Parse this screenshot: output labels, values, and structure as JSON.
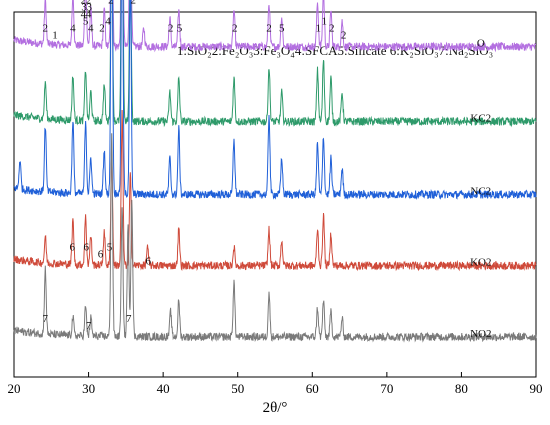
{
  "chart_data": {
    "type": "line",
    "title": "",
    "xlabel": "2θ/°",
    "ylabel": "",
    "xlim": [
      20,
      90
    ],
    "x_ticks": [
      20,
      30,
      40,
      50,
      60,
      70,
      80,
      90
    ],
    "x_tick_labels": [
      "20",
      "30",
      "40",
      "50",
      "60",
      "70",
      "80",
      "90"
    ],
    "y_ticks_shown": false,
    "grid": false,
    "legend": {
      "position": "top",
      "text": "1:SiO₂2:Fe₂O₃3:Fe₃O₄4:SFCA5:Silicate 6:K₂SiO₃7:Na₂SiO₃"
    },
    "series": [
      {
        "name": "O",
        "color": "#b36fe0",
        "baseline": 0.905,
        "peaks": [
          [
            24.2,
            0.12
          ],
          [
            27.9,
            0.14
          ],
          [
            29.6,
            0.18
          ],
          [
            30.3,
            0.1
          ],
          [
            32.1,
            0.1
          ],
          [
            33.1,
            0.45
          ],
          [
            34.5,
            0.62
          ],
          [
            35.6,
            0.45
          ],
          [
            37.4,
            0.05
          ],
          [
            40.9,
            0.08
          ],
          [
            42.1,
            0.1
          ],
          [
            49.5,
            0.1
          ],
          [
            54.2,
            0.12
          ],
          [
            55.9,
            0.08
          ],
          [
            60.7,
            0.12
          ],
          [
            61.5,
            0.15
          ],
          [
            62.5,
            0.1
          ],
          [
            64.0,
            0.07
          ]
        ]
      },
      {
        "name": "KC2",
        "color": "#2e9a6a",
        "baseline": 0.7,
        "peaks": [
          [
            24.2,
            0.1
          ],
          [
            27.9,
            0.12
          ],
          [
            29.6,
            0.14
          ],
          [
            30.3,
            0.08
          ],
          [
            32.1,
            0.1
          ],
          [
            33.1,
            0.55
          ],
          [
            34.5,
            0.75
          ],
          [
            35.6,
            0.45
          ],
          [
            40.9,
            0.08
          ],
          [
            42.1,
            0.12
          ],
          [
            49.5,
            0.12
          ],
          [
            54.2,
            0.15
          ],
          [
            55.9,
            0.08
          ],
          [
            60.7,
            0.14
          ],
          [
            61.5,
            0.17
          ],
          [
            62.5,
            0.12
          ],
          [
            64.0,
            0.08
          ]
        ]
      },
      {
        "name": "NC2",
        "color": "#2060d8",
        "baseline": 0.5,
        "peaks": [
          [
            20.8,
            0.08
          ],
          [
            24.2,
            0.18
          ],
          [
            27.9,
            0.2
          ],
          [
            29.6,
            0.2
          ],
          [
            30.3,
            0.1
          ],
          [
            32.1,
            0.12
          ],
          [
            33.1,
            0.85
          ],
          [
            34.5,
            0.8
          ],
          [
            35.6,
            0.6
          ],
          [
            40.9,
            0.1
          ],
          [
            42.1,
            0.18
          ],
          [
            49.5,
            0.15
          ],
          [
            54.2,
            0.22
          ],
          [
            55.9,
            0.1
          ],
          [
            60.7,
            0.14
          ],
          [
            61.5,
            0.16
          ],
          [
            62.5,
            0.1
          ],
          [
            64.0,
            0.07
          ]
        ]
      },
      {
        "name": "KO2",
        "color": "#cf4a3a",
        "baseline": 0.305,
        "peaks": [
          [
            24.2,
            0.07
          ],
          [
            27.9,
            0.12
          ],
          [
            29.6,
            0.13
          ],
          [
            30.3,
            0.08
          ],
          [
            32.1,
            0.09
          ],
          [
            33.1,
            0.3
          ],
          [
            34.5,
            0.42
          ],
          [
            35.6,
            0.25
          ],
          [
            37.9,
            0.05
          ],
          [
            42.1,
            0.1
          ],
          [
            49.5,
            0.05
          ],
          [
            54.2,
            0.1
          ],
          [
            55.9,
            0.07
          ],
          [
            60.7,
            0.1
          ],
          [
            61.5,
            0.14
          ],
          [
            62.5,
            0.09
          ]
        ]
      },
      {
        "name": "NO2",
        "color": "#7a7a7a",
        "baseline": 0.11,
        "peaks": [
          [
            24.2,
            0.18
          ],
          [
            27.9,
            0.05
          ],
          [
            29.6,
            0.08
          ],
          [
            30.3,
            0.05
          ],
          [
            33.1,
            0.55
          ],
          [
            34.5,
            0.35
          ],
          [
            35.3,
            0.3
          ],
          [
            35.8,
            0.38
          ],
          [
            41.0,
            0.07
          ],
          [
            42.1,
            0.1
          ],
          [
            49.5,
            0.15
          ],
          [
            54.2,
            0.12
          ],
          [
            60.7,
            0.08
          ],
          [
            61.5,
            0.1
          ],
          [
            62.5,
            0.07
          ],
          [
            64.0,
            0.05
          ]
        ]
      }
    ],
    "annotations": [
      {
        "series": "O",
        "x": 24.2,
        "label": "2",
        "row": 0
      },
      {
        "series": "O",
        "x": 25.5,
        "label": "1",
        "row": 1
      },
      {
        "series": "O",
        "x": 27.9,
        "label": "4",
        "row": 0
      },
      {
        "series": "O",
        "x": 29.3,
        "label": "2",
        "row": -4
      },
      {
        "series": "O",
        "x": 30.0,
        "label": "2",
        "row": -4
      },
      {
        "series": "O",
        "x": 29.4,
        "label": "3",
        "row": -3
      },
      {
        "series": "O",
        "x": 30.1,
        "label": "3",
        "row": -3
      },
      {
        "series": "O",
        "x": 29.3,
        "label": "4",
        "row": -2
      },
      {
        "series": "O",
        "x": 30.0,
        "label": "4",
        "row": -2
      },
      {
        "series": "O",
        "x": 29.6,
        "label": "5",
        "row": -1
      },
      {
        "series": "O",
        "x": 30.3,
        "label": "4",
        "row": 0
      },
      {
        "series": "O",
        "x": 31.8,
        "label": "2",
        "row": 0
      },
      {
        "series": "O",
        "x": 32.6,
        "label": "4",
        "row": -1
      },
      {
        "series": "O",
        "x": 33.0,
        "label": "2",
        "row": -4
      },
      {
        "series": "O",
        "x": 33.9,
        "label": "2",
        "row": -5
      },
      {
        "series": "O",
        "x": 34.9,
        "label": "4",
        "row": -5
      },
      {
        "series": "O",
        "x": 36.0,
        "label": "2",
        "row": -4
      },
      {
        "series": "O",
        "x": 41.0,
        "label": "2",
        "row": 0
      },
      {
        "series": "O",
        "x": 42.2,
        "label": "5",
        "row": 0
      },
      {
        "series": "O",
        "x": 49.6,
        "label": "2",
        "row": 0
      },
      {
        "series": "O",
        "x": 54.2,
        "label": "2",
        "row": 0
      },
      {
        "series": "O",
        "x": 55.9,
        "label": "5",
        "row": 0
      },
      {
        "series": "O",
        "x": 60.8,
        "label": "1",
        "row": 0
      },
      {
        "series": "O",
        "x": 61.6,
        "label": "1",
        "row": -1
      },
      {
        "series": "O",
        "x": 62.6,
        "label": "2",
        "row": 0
      },
      {
        "series": "O",
        "x": 64.2,
        "label": "2",
        "row": 1
      },
      {
        "series": "KO2",
        "x": 27.8,
        "label": "6",
        "row": 0
      },
      {
        "series": "KO2",
        "x": 29.7,
        "label": "6",
        "row": 0
      },
      {
        "series": "KO2",
        "x": 31.6,
        "label": "6",
        "row": 1
      },
      {
        "series": "KO2",
        "x": 32.8,
        "label": "5",
        "row": 0
      },
      {
        "series": "KO2",
        "x": 38.0,
        "label": "6",
        "row": 2
      },
      {
        "series": "NO2",
        "x": 24.2,
        "label": "7",
        "row": 0
      },
      {
        "series": "NO2",
        "x": 30.0,
        "label": "7",
        "row": 1
      },
      {
        "series": "NO2",
        "x": 35.4,
        "label": "7",
        "row": 0
      }
    ]
  }
}
